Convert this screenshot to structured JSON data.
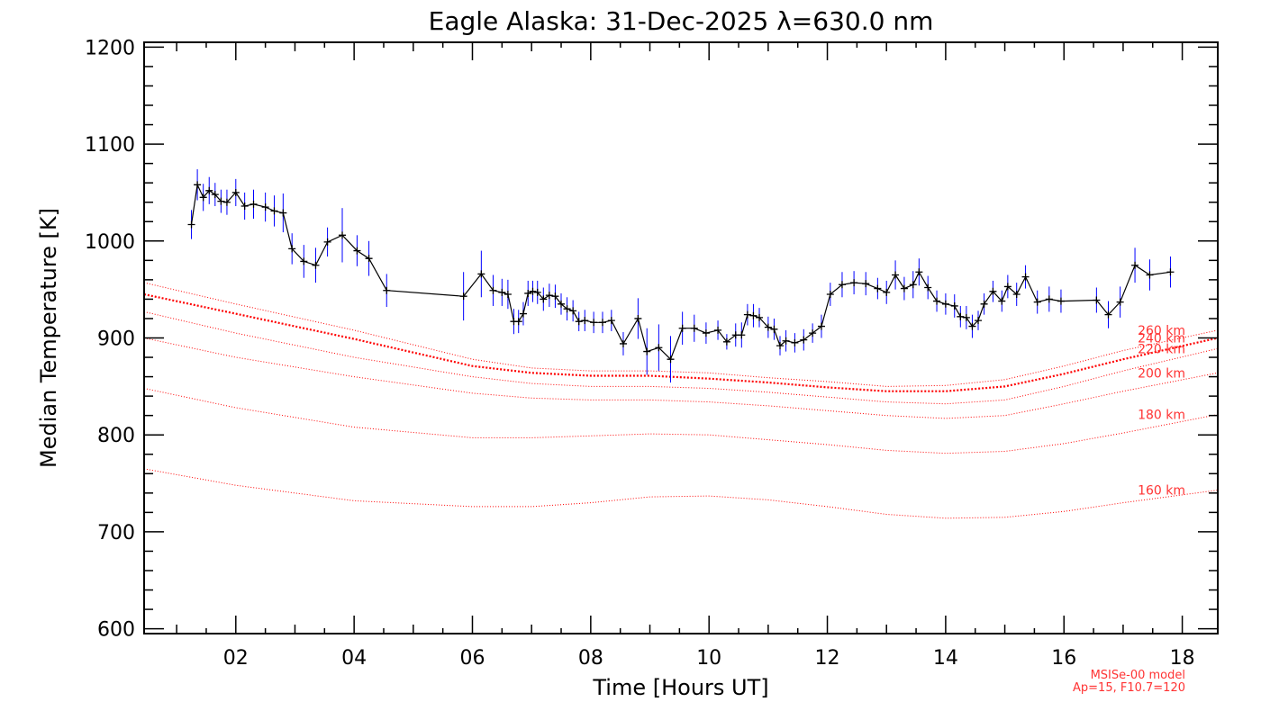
{
  "chart_data": {
    "type": "line",
    "title": "Eagle Alaska: 31-Dec-2025 λ=630.0 nm",
    "xlabel": "Time [Hours UT]",
    "ylabel": "Median Temperature [K]",
    "xlim": [
      0.45,
      18.6
    ],
    "ylim": [
      595,
      1205
    ],
    "xticks": [
      2,
      4,
      6,
      8,
      10,
      12,
      14,
      16,
      18
    ],
    "xtick_labels": [
      "02",
      "04",
      "06",
      "08",
      "10",
      "12",
      "14",
      "16",
      "18"
    ],
    "yticks": [
      600,
      700,
      800,
      900,
      1000,
      1100,
      1200
    ],
    "ytick_labels": [
      "600",
      "700",
      "800",
      "900",
      "1000",
      "1100",
      "1200"
    ],
    "grid": false,
    "colors": {
      "series_line": "#000000",
      "error_bars": "#0000ff",
      "model_lines": "#ff0000",
      "model_text": "#ff3333"
    },
    "series": [
      {
        "x": [
          1.25,
          1.35,
          1.45,
          1.55,
          1.65,
          1.75,
          1.85,
          2.0,
          2.15,
          2.3,
          2.5,
          2.65,
          2.8,
          2.95,
          3.15,
          3.35,
          3.55,
          3.8,
          4.05,
          4.25,
          4.55,
          5.85,
          6.15,
          6.35,
          6.5,
          6.6,
          6.7,
          6.78,
          6.86,
          6.94,
          7.02,
          7.1,
          7.2,
          7.3,
          7.4,
          7.5,
          7.6,
          7.7,
          7.8,
          7.9,
          8.05,
          8.2,
          8.35,
          8.55,
          8.8,
          8.95,
          9.15,
          9.35,
          9.55,
          9.75,
          9.95,
          10.15,
          10.3,
          10.45,
          10.55,
          10.65,
          10.75,
          10.85,
          11.0,
          11.1,
          11.2,
          11.3,
          11.45,
          11.6,
          11.75,
          11.9,
          12.05,
          12.25,
          12.45,
          12.65,
          12.85,
          13.0,
          13.15,
          13.3,
          13.45,
          13.55,
          13.7,
          13.85,
          14.0,
          14.15,
          14.25,
          14.35,
          14.45,
          14.55,
          14.65,
          14.8,
          14.95,
          15.05,
          15.2,
          15.35,
          15.55,
          15.75,
          15.95,
          16.55,
          16.75,
          16.95,
          17.2,
          17.45,
          17.8
        ],
        "values": [
          1017,
          1058,
          1045,
          1052,
          1048,
          1041,
          1040,
          1050,
          1036,
          1038,
          1035,
          1031,
          1029,
          992,
          979,
          975,
          999,
          1006,
          990,
          982,
          949,
          943,
          966,
          949,
          947,
          945,
          917,
          917,
          925,
          946,
          948,
          947,
          940,
          944,
          943,
          935,
          930,
          928,
          917,
          918,
          916,
          916,
          918,
          894,
          920,
          886,
          890,
          878,
          910,
          910,
          905,
          908,
          896,
          903,
          903,
          924,
          923,
          921,
          911,
          909,
          892,
          897,
          895,
          898,
          905,
          912,
          945,
          955,
          957,
          956,
          951,
          947,
          965,
          951,
          955,
          968,
          952,
          938,
          935,
          933,
          922,
          921,
          912,
          918,
          935,
          948,
          938,
          953,
          945,
          963,
          937,
          940,
          938,
          939,
          924,
          937,
          975,
          965,
          968
        ],
        "err_low": [
          15,
          16,
          14,
          14,
          12,
          12,
          13,
          14,
          14,
          15,
          15,
          16,
          20,
          16,
          17,
          18,
          15,
          28,
          16,
          18,
          17,
          25,
          24,
          16,
          14,
          15,
          13,
          12,
          12,
          13,
          11,
          12,
          12,
          12,
          12,
          11,
          12,
          11,
          10,
          11,
          11,
          11,
          11,
          12,
          21,
          24,
          24,
          24,
          17,
          14,
          11,
          10,
          8,
          12,
          13,
          11,
          12,
          10,
          11,
          11,
          10,
          11,
          10,
          11,
          10,
          12,
          12,
          13,
          12,
          12,
          11,
          12,
          15,
          12,
          14,
          14,
          12,
          11,
          11,
          12,
          11,
          12,
          12,
          10,
          11,
          11,
          11,
          12,
          12,
          12,
          12,
          13,
          12,
          13,
          14,
          16,
          18,
          16,
          16
        ],
        "err_high": [
          15,
          16,
          14,
          14,
          12,
          12,
          13,
          14,
          14,
          15,
          15,
          16,
          20,
          16,
          17,
          18,
          15,
          28,
          16,
          18,
          17,
          25,
          24,
          16,
          14,
          15,
          13,
          12,
          12,
          13,
          11,
          12,
          12,
          12,
          12,
          11,
          12,
          11,
          10,
          11,
          11,
          11,
          11,
          12,
          21,
          24,
          24,
          24,
          17,
          14,
          11,
          10,
          8,
          12,
          13,
          11,
          12,
          10,
          11,
          11,
          10,
          11,
          10,
          11,
          10,
          12,
          12,
          13,
          12,
          12,
          11,
          12,
          15,
          12,
          14,
          14,
          12,
          11,
          11,
          12,
          11,
          12,
          12,
          10,
          11,
          11,
          11,
          12,
          12,
          12,
          12,
          13,
          12,
          13,
          14,
          16,
          18,
          16,
          16
        ]
      }
    ],
    "model_x": [
      0.45,
      2.0,
      4.0,
      6.0,
      7.0,
      8.0,
      9.0,
      10.0,
      11.0,
      12.0,
      13.0,
      14.0,
      15.0,
      16.0,
      17.0,
      18.6
    ],
    "model_series": [
      {
        "name": "160 km",
        "values": [
          765,
          748,
          732,
          726,
          726,
          730,
          736,
          737,
          733,
          726,
          718,
          714,
          715,
          721,
          730,
          743
        ]
      },
      {
        "name": "180 km",
        "values": [
          848,
          828,
          808,
          797,
          797,
          799,
          801,
          800,
          795,
          790,
          784,
          781,
          783,
          791,
          802,
          821
        ]
      },
      {
        "name": "200 km",
        "values": [
          900,
          880,
          860,
          843,
          838,
          836,
          836,
          834,
          830,
          825,
          820,
          817,
          820,
          832,
          845,
          864
        ]
      },
      {
        "name": "220 km",
        "values": [
          927,
          905,
          880,
          860,
          853,
          850,
          850,
          848,
          844,
          839,
          834,
          832,
          836,
          850,
          866,
          889
        ]
      },
      {
        "name": "240 km",
        "values": [
          945,
          925,
          899,
          871,
          864,
          861,
          861,
          858,
          854,
          849,
          845,
          845,
          850,
          863,
          878,
          900
        ]
      },
      {
        "name": "260 km",
        "values": [
          957,
          935,
          908,
          878,
          869,
          866,
          866,
          864,
          859,
          855,
          850,
          851,
          857,
          871,
          887,
          908
        ]
      }
    ],
    "model_note": [
      "MSISe-00 model",
      "Ap=15, F10.7=120"
    ]
  }
}
